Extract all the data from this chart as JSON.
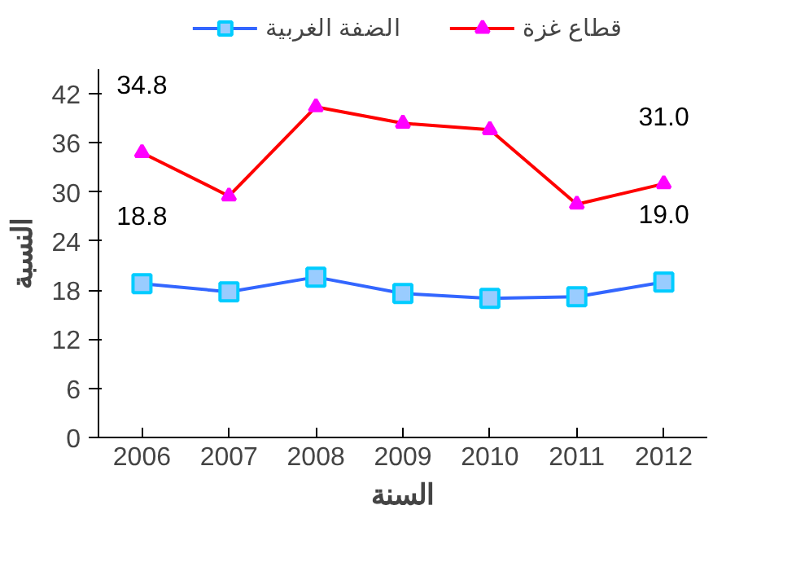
{
  "chart_data": {
    "type": "line",
    "categories": [
      "2006",
      "2007",
      "2008",
      "2009",
      "2010",
      "2011",
      "2012"
    ],
    "xlabel": "السنة",
    "ylabel": "النسبة",
    "ylim": [
      0,
      45
    ],
    "yticks": [
      0,
      6,
      12,
      18,
      24,
      30,
      36,
      42
    ],
    "grid": false,
    "legend": "top",
    "series": [
      {
        "name": "الضفة الغربية",
        "color": "#3366ff",
        "marker": "square",
        "values": [
          18.8,
          17.8,
          19.6,
          17.6,
          17.0,
          17.2,
          19.0
        ],
        "value_labels": [
          "18.8",
          null,
          null,
          null,
          null,
          null,
          "19.0"
        ]
      },
      {
        "name": "قطاع غزة",
        "color": "#ff0000",
        "marker": "triangle",
        "values": [
          34.8,
          29.5,
          40.4,
          38.4,
          37.6,
          28.5,
          31.0
        ],
        "value_labels": [
          "34.8",
          null,
          null,
          null,
          null,
          null,
          "31.0"
        ]
      }
    ]
  }
}
